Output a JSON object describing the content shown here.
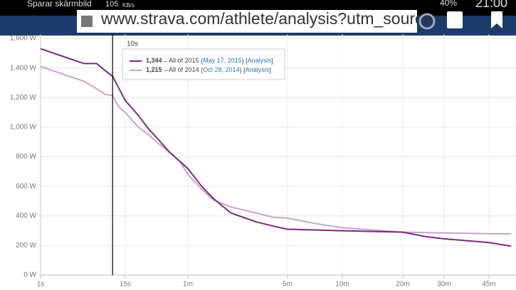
{
  "browser": {
    "status": "Sparar skärmbild",
    "speed": "105",
    "speed_unit": "KB/s",
    "battery": "40%",
    "clock": "21:00",
    "url": "www.strava.com/athlete/analysis?utm_source="
  },
  "chart_data": {
    "type": "line",
    "x": [
      1,
      2,
      4,
      6,
      8,
      10,
      12,
      15,
      20,
      25,
      30,
      40,
      50,
      60,
      75,
      90,
      120,
      180,
      240,
      300,
      420,
      600,
      1200,
      1500,
      1800,
      2700,
      3300
    ],
    "series": [
      {
        "name": "All of 2015",
        "color": "#7b2a80",
        "values": [
          1530,
          1480,
          1430,
          1430,
          1380,
          1344,
          1270,
          1180,
          1080,
          990,
          930,
          830,
          770,
          720,
          600,
          520,
          420,
          360,
          330,
          310,
          305,
          300,
          290,
          260,
          245,
          220,
          195
        ]
      },
      {
        "name": "All of 2014",
        "color": "#c9a3cc",
        "values": [
          1410,
          1360,
          1310,
          1260,
          1220,
          1215,
          1140,
          1100,
          1000,
          950,
          900,
          830,
          770,
          680,
          580,
          510,
          460,
          420,
          390,
          385,
          350,
          320,
          290,
          288,
          285,
          280,
          278
        ]
      }
    ],
    "xlim": [
      1,
      3300
    ],
    "xticks": [
      {
        "value": 1,
        "label": "1s"
      },
      {
        "value": 15,
        "label": "15s"
      },
      {
        "value": 60,
        "label": "1m"
      },
      {
        "value": 300,
        "label": "5m"
      },
      {
        "value": 600,
        "label": "10m"
      },
      {
        "value": 1200,
        "label": "20m"
      },
      {
        "value": 1800,
        "label": "30m"
      },
      {
        "value": 2700,
        "label": "45m"
      }
    ],
    "ylim": [
      0,
      1600
    ],
    "yticks": [
      {
        "value": 0,
        "label": "0 W"
      },
      {
        "value": 200,
        "label": "200 W"
      },
      {
        "value": 400,
        "label": "400 W"
      },
      {
        "value": 600,
        "label": "600 W"
      },
      {
        "value": 800,
        "label": "800 W"
      },
      {
        "value": 1000,
        "label": "1,000 W"
      },
      {
        "value": 1200,
        "label": "1,200 W"
      },
      {
        "value": 1400,
        "label": "1,400 W"
      },
      {
        "value": 1600,
        "label": "1,600 W"
      }
    ],
    "grid": true,
    "tooltip": {
      "title": {
        "value": 10,
        "label": "10s"
      },
      "entries": [
        {
          "value": 1344,
          "label": "1,344",
          "date": "May 17, 2015",
          "link": "Analysis"
        },
        {
          "value": 1215,
          "label": "1,215",
          "date": "Oct 28, 2014",
          "link": "Analysis"
        }
      ]
    }
  }
}
